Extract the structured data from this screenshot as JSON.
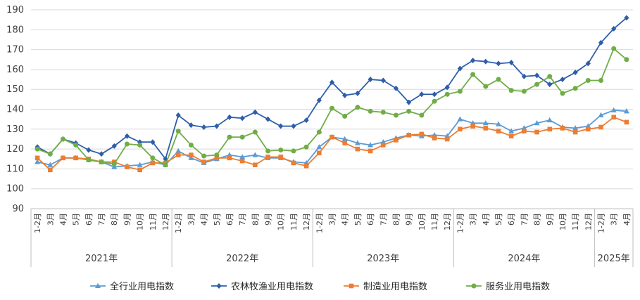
{
  "chart_data": {
    "type": "line",
    "title": "",
    "xlabel": "",
    "ylabel": "",
    "ylim": [
      90,
      190
    ],
    "yticks": [
      90,
      100,
      110,
      120,
      130,
      140,
      150,
      160,
      170,
      180,
      190
    ],
    "grid": "horizontal",
    "legend_position": "bottom",
    "categories": [
      "1-2月",
      "3月",
      "4月",
      "5月",
      "6月",
      "7月",
      "8月",
      "9月",
      "10月",
      "11月",
      "12月",
      "1-2月",
      "3月",
      "4月",
      "5月",
      "6月",
      "7月",
      "8月",
      "9月",
      "10月",
      "11月",
      "12月",
      "1-2月",
      "3月",
      "4月",
      "5月",
      "6月",
      "7月",
      "8月",
      "9月",
      "10月",
      "11月",
      "12月",
      "1-2月",
      "3月",
      "4月",
      "5月",
      "6月",
      "7月",
      "8月",
      "9月",
      "10月",
      "11月",
      "12月",
      "1-2月",
      "3月",
      "4月"
    ],
    "year_groups": [
      {
        "label": "2021年",
        "count": 11
      },
      {
        "label": "2022年",
        "count": 11
      },
      {
        "label": "2023年",
        "count": 11
      },
      {
        "label": "2024年",
        "count": 11
      },
      {
        "label": "2025年",
        "count": 3
      }
    ],
    "series": [
      {
        "name": "全行业用电指数",
        "color": "#5B9BD5",
        "marker": "triangle",
        "values": [
          113.5,
          112,
          115.5,
          115.5,
          114.5,
          113.5,
          111,
          111.5,
          112,
          113.5,
          112,
          119,
          115.5,
          113,
          115,
          117,
          116,
          117,
          115.5,
          115.5,
          113.5,
          113,
          121,
          126,
          125,
          123,
          122,
          123.5,
          125.5,
          127,
          126.5,
          127,
          126.5,
          135,
          133,
          133,
          132.5,
          129,
          130.5,
          133,
          134.5,
          131,
          130.5,
          131.5,
          137,
          139.5,
          139
        ]
      },
      {
        "name": "农林牧渔业用电指数",
        "color": "#2E5EAA",
        "marker": "diamond",
        "values": [
          121,
          117.5,
          125,
          123,
          119.5,
          117.5,
          121.5,
          126.5,
          123.5,
          123.5,
          115,
          137,
          132,
          131,
          131.5,
          136,
          135.5,
          138.5,
          135,
          131.5,
          131.5,
          134.5,
          144.5,
          153.5,
          147,
          148,
          155,
          154.5,
          150.5,
          143.5,
          147.5,
          147.5,
          151,
          160.5,
          164.5,
          164,
          163,
          163.5,
          156.5,
          157,
          152.5,
          155,
          158.5,
          163,
          173.5,
          180.5,
          186
        ]
      },
      {
        "name": "制造业用电指数",
        "color": "#ED7D31",
        "marker": "square",
        "values": [
          115.5,
          109.5,
          115.5,
          115.5,
          115,
          113.5,
          113.5,
          111,
          109.5,
          113,
          113,
          117,
          117,
          113.5,
          115.5,
          115.5,
          114,
          112,
          116,
          116,
          113,
          111.5,
          118,
          126,
          123,
          120,
          119,
          122,
          124.5,
          127,
          127.5,
          125.5,
          125,
          130,
          131.5,
          130.5,
          129,
          126.5,
          129,
          128.5,
          130,
          130.5,
          128.5,
          130,
          131,
          136,
          133.5
        ]
      },
      {
        "name": "服务业用电指数",
        "color": "#70AD47",
        "marker": "circle",
        "values": [
          120,
          117.5,
          125,
          122,
          114.5,
          113.5,
          112.5,
          122.5,
          122,
          115.5,
          112,
          129,
          122,
          116.5,
          117,
          126,
          126,
          128.5,
          119,
          119.5,
          119,
          121,
          128.5,
          140.5,
          136.5,
          141,
          139,
          138.5,
          137,
          139,
          137,
          144,
          147.5,
          149,
          157.5,
          151.5,
          155,
          149.5,
          149,
          152.5,
          156.5,
          148,
          150.5,
          154.5,
          154.5,
          170.5,
          165
        ]
      }
    ]
  }
}
